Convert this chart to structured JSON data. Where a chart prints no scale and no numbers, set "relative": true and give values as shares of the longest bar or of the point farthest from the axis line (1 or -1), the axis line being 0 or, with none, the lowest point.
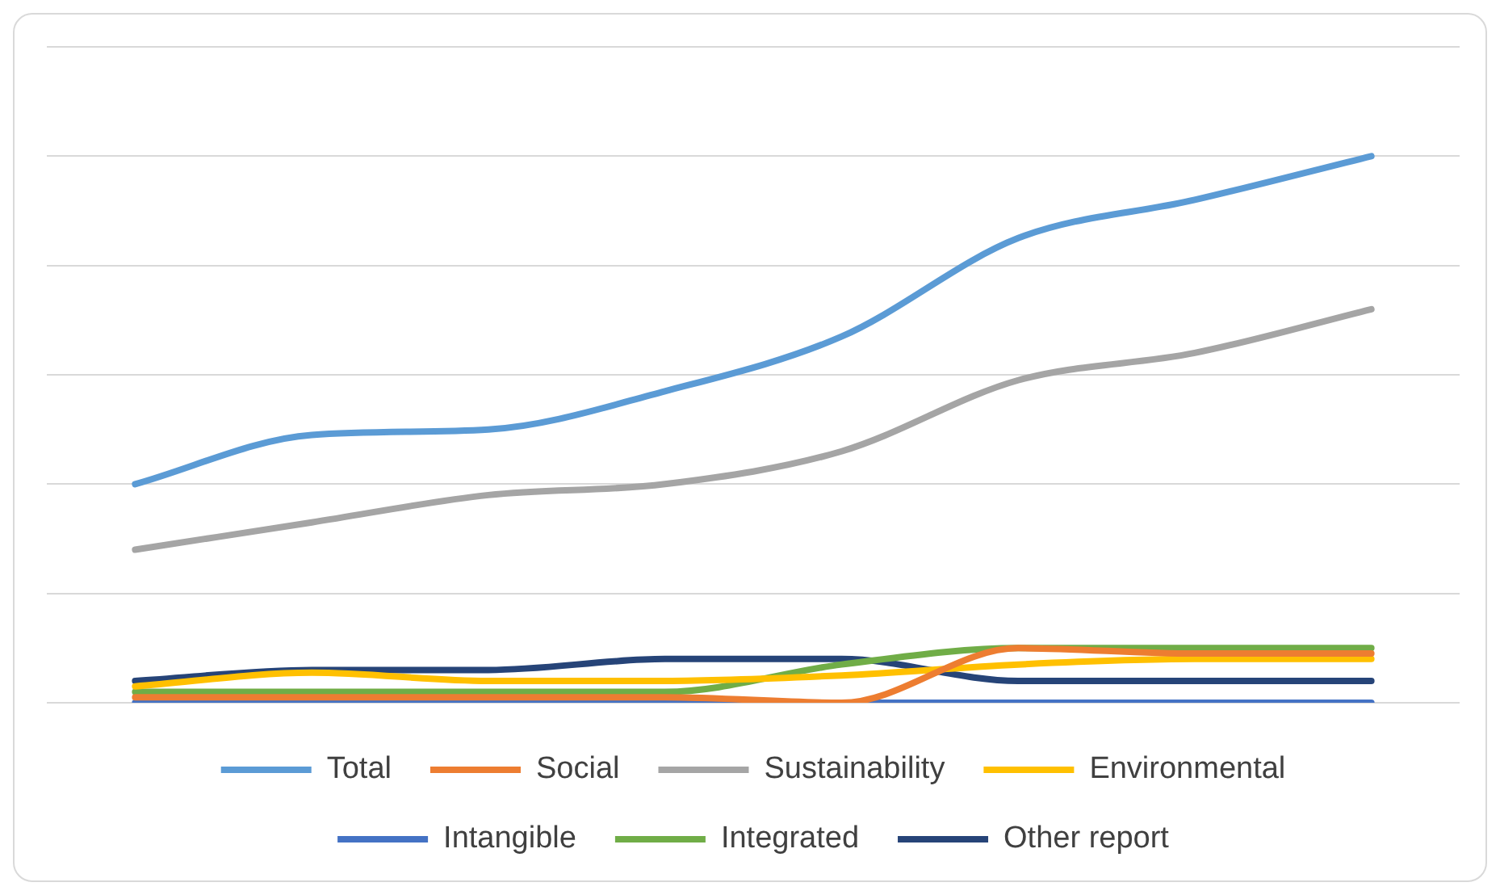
{
  "chart_data": {
    "type": "line",
    "relative": true,
    "categories": [
      null,
      null,
      null,
      null,
      null,
      null,
      null,
      null
    ],
    "series": [
      {
        "name": "Total",
        "color": "#5b9bd5",
        "values": [
          0.4,
          0.49,
          0.5,
          0.57,
          0.67,
          0.85,
          0.92,
          1
        ]
      },
      {
        "name": "Social",
        "color": "#ed7d31",
        "values": [
          0.01,
          0.01,
          0.01,
          0.01,
          0,
          0.1,
          0.09,
          0.09
        ]
      },
      {
        "name": "Sustainability",
        "color": "#a5a5a5",
        "values": [
          0.28,
          0.33,
          0.38,
          0.4,
          0.46,
          0.59,
          0.64,
          0.72
        ]
      },
      {
        "name": "Environmental",
        "color": "#ffc000",
        "values": [
          0.03,
          0.055,
          0.04,
          0.04,
          0.05,
          0.07,
          0.08,
          0.08
        ]
      },
      {
        "name": "Intangible",
        "color": "#4472c4",
        "values": [
          0,
          0,
          0,
          0,
          0,
          0,
          0,
          0
        ]
      },
      {
        "name": "Integrated",
        "color": "#70ad47",
        "values": [
          0.02,
          0.02,
          0.02,
          0.02,
          0.07,
          0.1,
          0.1,
          0.1
        ]
      },
      {
        "name": "Other report",
        "color": "#264478",
        "values": [
          0.04,
          0.06,
          0.06,
          0.08,
          0.08,
          0.04,
          0.04,
          0.04
        ]
      }
    ],
    "grid": "y",
    "legend": "bottom",
    "marker": "none",
    "line_style": "solid"
  }
}
